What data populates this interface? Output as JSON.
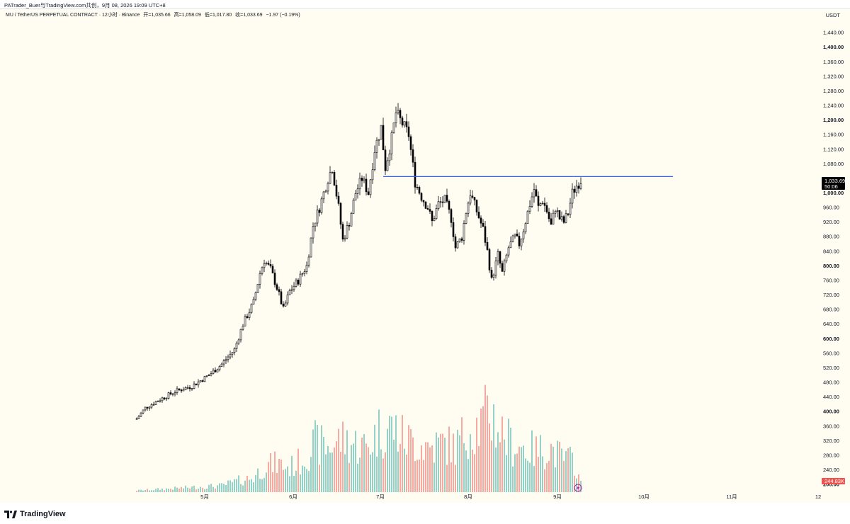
{
  "attribution": "PATrader_Buer与TradingView.com共创，9月 08, 2026 19:09 UTC+8",
  "legend": {
    "symbol": "MU / TetherUS PERPETUAL CONTRACT · 12小时 · Binance",
    "open": "开=1,035.66",
    "high": "高=1,058.09",
    "low": "低=1,017.80",
    "close": "收=1,033.69",
    "change": "−1.97 (−0.19%)"
  },
  "price_unit": "USDT",
  "last_price_label": "1,033.69",
  "countdown_label": "50:06",
  "volume_label": "244.83K",
  "footer_logo": "TradingView",
  "colors": {
    "background": "#fffdf2",
    "candle": "#000000",
    "volume_up": "#26a69a",
    "volume_down": "#ef5350",
    "hline": "#2962ff",
    "price_tag": "#000000",
    "volume_tag": "#ef5350"
  },
  "chart_data": {
    "type": "candlestick",
    "x_ticks": [
      "5月",
      "6月",
      "7月",
      "8月",
      "9月",
      "10月",
      "11月",
      "12"
    ],
    "y_ticks": [
      "1,440.00",
      "1,400.00",
      "1,360.00",
      "1,320.00",
      "1,280.00",
      "1,240.00",
      "1,200.00",
      "1,160.00",
      "1,120.00",
      "1,080.00",
      "1,000.00",
      "960.00",
      "920.00",
      "880.00",
      "840.00",
      "800.00",
      "760.00",
      "720.00",
      "680.00",
      "640.00",
      "600.00",
      "560.00",
      "520.00",
      "480.00",
      "440.00",
      "400.00",
      "360.00",
      "320.00",
      "280.00",
      "240.00",
      "200.00"
    ],
    "y_ticks_bold": [
      "1,400.00",
      "1,200.00",
      "1,000.00",
      "800.00",
      "600.00",
      "400.00",
      "200.00"
    ],
    "ylim": [
      200,
      1440
    ],
    "horizontal_line": 1045,
    "waypoints": [
      [
        0,
        380
      ],
      [
        4,
        410
      ],
      [
        10,
        430
      ],
      [
        18,
        455
      ],
      [
        26,
        470
      ],
      [
        34,
        500
      ],
      [
        40,
        530
      ],
      [
        46,
        570
      ],
      [
        50,
        640
      ],
      [
        55,
        700
      ],
      [
        58,
        780
      ],
      [
        60,
        815
      ],
      [
        63,
        790
      ],
      [
        66,
        740
      ],
      [
        69,
        680
      ],
      [
        72,
        730
      ],
      [
        76,
        760
      ],
      [
        80,
        800
      ],
      [
        83,
        910
      ],
      [
        86,
        960
      ],
      [
        90,
        1040
      ],
      [
        92,
        1070
      ],
      [
        95,
        960
      ],
      [
        97,
        870
      ],
      [
        100,
        920
      ],
      [
        103,
        1000
      ],
      [
        106,
        1040
      ],
      [
        109,
        1000
      ],
      [
        112,
        1120
      ],
      [
        115,
        1180
      ],
      [
        117,
        1070
      ],
      [
        120,
        1150
      ],
      [
        122,
        1220
      ],
      [
        125,
        1190
      ],
      [
        128,
        1160
      ],
      [
        131,
        1030
      ],
      [
        134,
        990
      ],
      [
        137,
        960
      ],
      [
        139,
        920
      ],
      [
        142,
        970
      ],
      [
        145,
        980
      ],
      [
        148,
        930
      ],
      [
        150,
        850
      ],
      [
        153,
        880
      ],
      [
        155,
        950
      ],
      [
        157,
        1000
      ],
      [
        160,
        950
      ],
      [
        163,
        900
      ],
      [
        165,
        840
      ],
      [
        167,
        760
      ],
      [
        170,
        830
      ],
      [
        172,
        780
      ],
      [
        175,
        850
      ],
      [
        178,
        880
      ],
      [
        180,
        860
      ],
      [
        182,
        900
      ],
      [
        185,
        970
      ],
      [
        187,
        1010
      ],
      [
        189,
        960
      ],
      [
        191,
        980
      ],
      [
        193,
        950
      ],
      [
        195,
        910
      ],
      [
        197,
        960
      ],
      [
        199,
        930
      ],
      [
        201,
        920
      ],
      [
        203,
        945
      ],
      [
        205,
        1000
      ],
      [
        207,
        1020
      ],
      [
        209,
        1035
      ]
    ],
    "volume_peaks": [
      [
        0,
        0.02
      ],
      [
        20,
        0.05
      ],
      [
        40,
        0.08
      ],
      [
        48,
        0.14
      ],
      [
        55,
        0.18
      ],
      [
        60,
        0.32
      ],
      [
        66,
        0.35
      ],
      [
        72,
        0.3
      ],
      [
        78,
        0.4
      ],
      [
        84,
        0.6
      ],
      [
        90,
        0.55
      ],
      [
        96,
        0.65
      ],
      [
        102,
        0.6
      ],
      [
        108,
        0.55
      ],
      [
        114,
        0.75
      ],
      [
        120,
        0.8
      ],
      [
        126,
        0.65
      ],
      [
        132,
        0.6
      ],
      [
        138,
        0.55
      ],
      [
        144,
        0.6
      ],
      [
        150,
        0.55
      ],
      [
        156,
        0.78
      ],
      [
        162,
        0.82
      ],
      [
        166,
        1.0
      ],
      [
        170,
        0.8
      ],
      [
        176,
        0.6
      ],
      [
        182,
        0.55
      ],
      [
        188,
        0.5
      ],
      [
        194,
        0.55
      ],
      [
        200,
        0.42
      ],
      [
        206,
        0.38
      ],
      [
        209,
        0.1
      ]
    ]
  }
}
